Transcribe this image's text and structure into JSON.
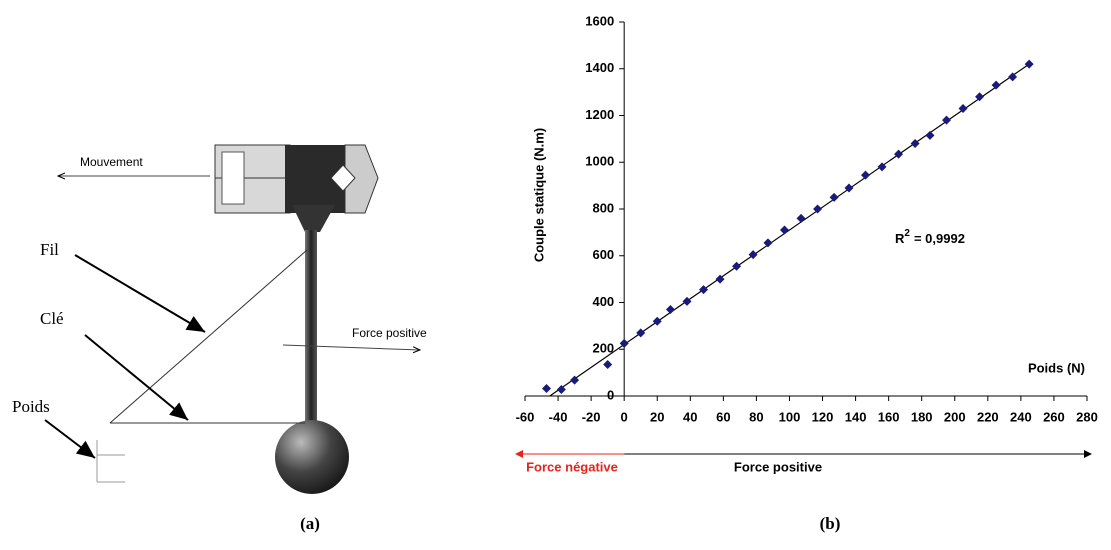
{
  "chart_data": {
    "type": "scatter",
    "y_label": "Couple statique (N.m)",
    "x_label": "Poids (N)",
    "r2_base": "R",
    "r2_exponent": "2",
    "r2_value": "= 0,9992",
    "negative_label": "Force négative",
    "negative_color": "#e8231e",
    "positive_label": "Force positive",
    "positive_color": "#000000",
    "color": "#1a1a7a",
    "x": [
      -47,
      -38,
      -30,
      -10,
      0,
      10,
      20,
      28,
      38,
      48,
      58,
      68,
      78,
      87,
      97,
      107,
      117,
      127,
      136,
      146,
      156,
      166,
      176,
      185,
      195,
      205,
      215,
      225,
      235,
      245
    ],
    "values": [
      32,
      28,
      68,
      135,
      225,
      270,
      320,
      370,
      405,
      455,
      500,
      555,
      605,
      655,
      710,
      760,
      800,
      850,
      890,
      945,
      980,
      1035,
      1080,
      1115,
      1180,
      1230,
      1280,
      1330,
      1365,
      1420
    ],
    "trendline": {
      "x": [
        -45,
        245
      ],
      "y": [
        0,
        1420
      ]
    },
    "xlim": [
      -60,
      280
    ],
    "xticks": [
      -60,
      -40,
      -20,
      0,
      20,
      40,
      60,
      80,
      100,
      120,
      140,
      160,
      180,
      200,
      220,
      240,
      260,
      280
    ],
    "ylim": [
      0,
      1600
    ],
    "yticks": [
      0,
      200,
      400,
      600,
      800,
      1000,
      1200,
      1400,
      1600
    ]
  },
  "diagram": {
    "mouvement": "Mouvement",
    "fil": "Fil",
    "cle": "Clé",
    "poids": "Poids",
    "force": "Force positive"
  },
  "captions": {
    "a": "(a)",
    "b": "(b)"
  }
}
